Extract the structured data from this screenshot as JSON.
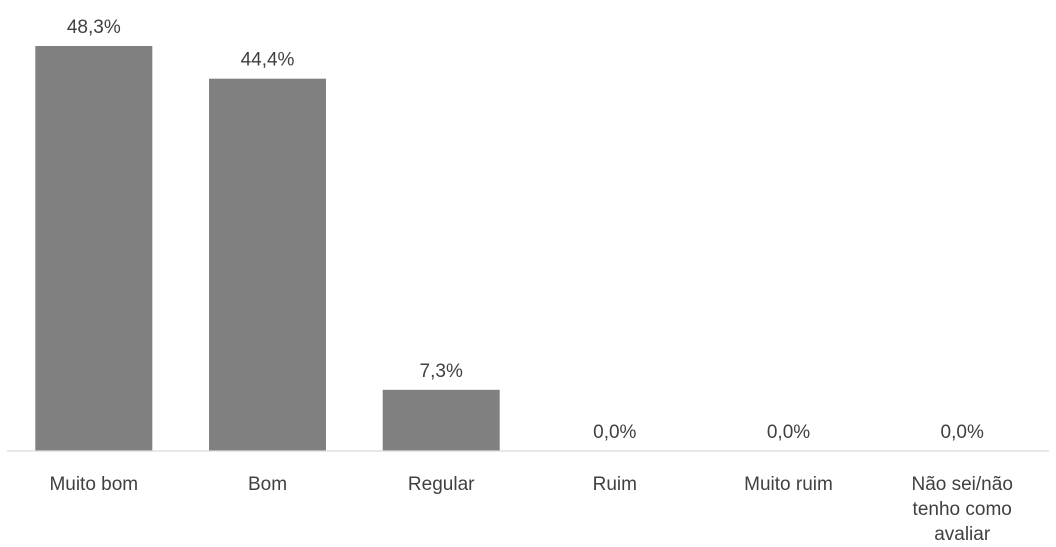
{
  "chart_data": {
    "type": "bar",
    "categories": [
      "Muito bom",
      "Bom",
      "Regular",
      "Ruim",
      "Muito ruim",
      "Não sei/não tenho como avaliar"
    ],
    "category_lines": [
      [
        "Muito bom"
      ],
      [
        "Bom"
      ],
      [
        "Regular"
      ],
      [
        "Ruim"
      ],
      [
        "Muito ruim"
      ],
      [
        "Não sei/não",
        "tenho como",
        "avaliar"
      ]
    ],
    "values": [
      48.3,
      44.4,
      7.3,
      0.0,
      0.0,
      0.0
    ],
    "data_labels": [
      "48,3%",
      "44,4%",
      "7,3%",
      "0,0%",
      "0,0%",
      "0,0%"
    ],
    "title": "",
    "xlabel": "",
    "ylabel": "",
    "ylim": [
      0,
      50
    ],
    "grid": false,
    "legend": "none",
    "bar_color": "#808080",
    "axis_color": "#d9d9d9",
    "text_color": "#404040"
  }
}
